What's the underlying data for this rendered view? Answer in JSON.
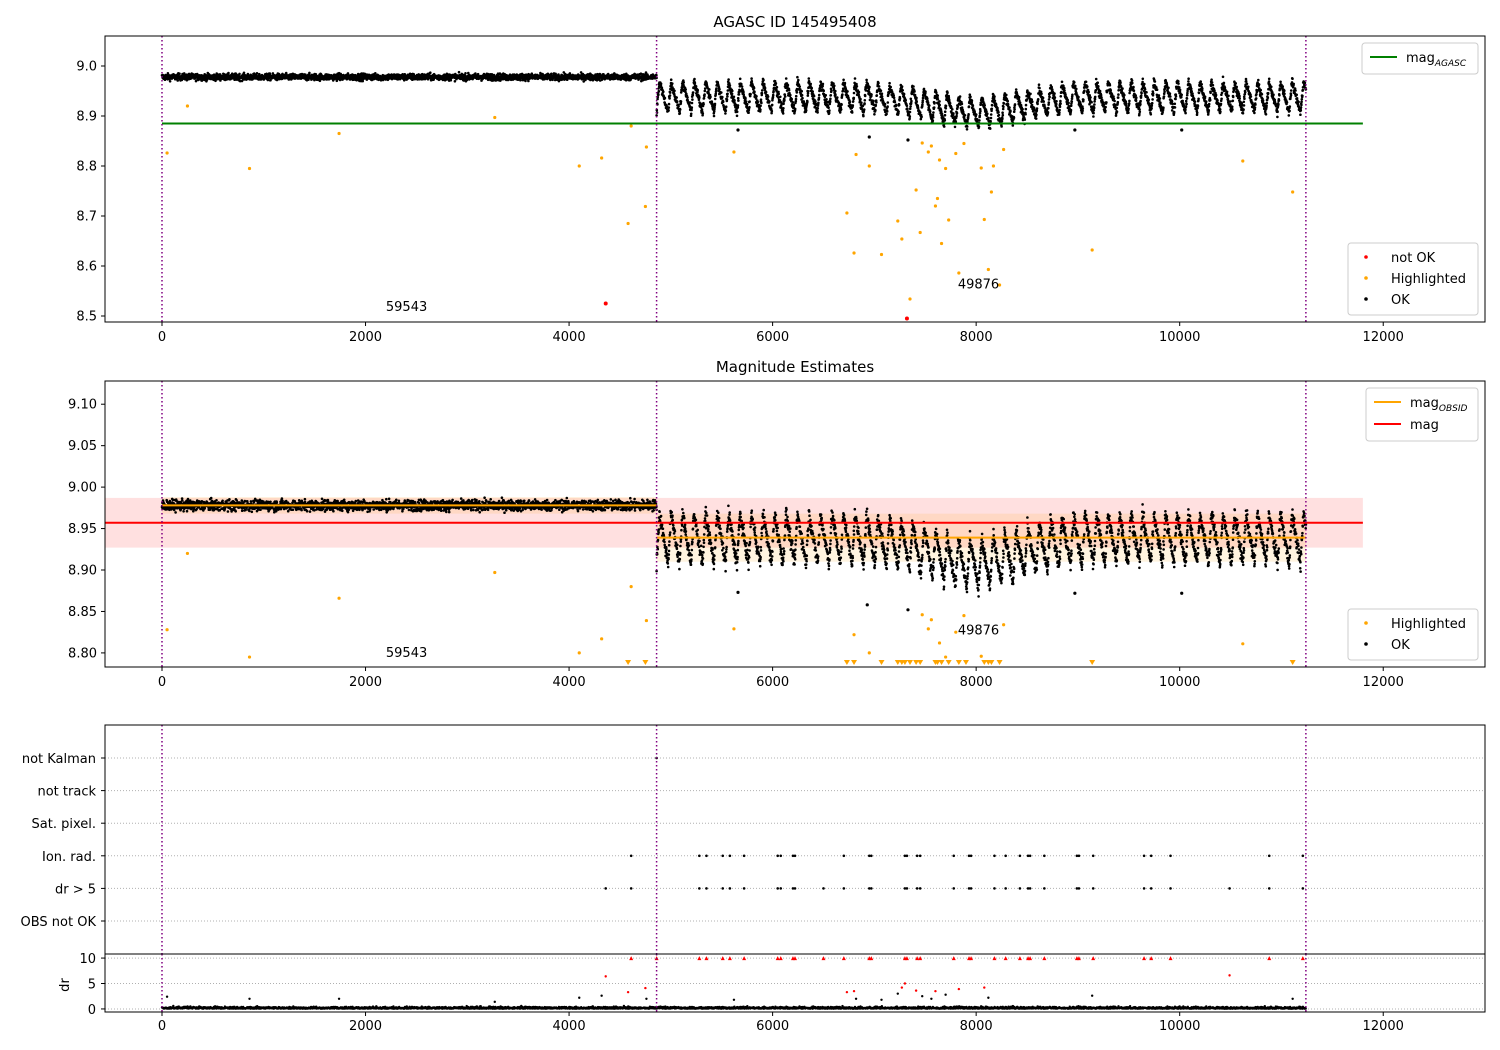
{
  "chart_data": [
    {
      "type": "scatter",
      "title": "AGASC ID 145495408",
      "xlim": [
        -560,
        13000
      ],
      "ylim": [
        8.488,
        9.06
      ],
      "x_ticks": [
        "0",
        "2000",
        "4000",
        "6000",
        "8000",
        "10000",
        "12000"
      ],
      "y_ticks": [
        "8.5",
        "8.6",
        "8.7",
        "8.8",
        "8.9",
        "9.0"
      ],
      "obs_boundaries": [
        0,
        4860,
        11240
      ],
      "obs_labels": [
        {
          "text": "59543",
          "x": 2200,
          "y": 8.51
        },
        {
          "text": "49876",
          "x": 7820,
          "y": 8.555
        }
      ],
      "reference_lines": [
        {
          "name": "mag",
          "sub": "AGASC",
          "value": 8.885,
          "color": "#008000",
          "x_range": [
            0,
            11800
          ]
        }
      ],
      "legend_lines": [
        {
          "main": "mag",
          "sub": "AGASC",
          "color": "#008000"
        }
      ],
      "legend_points": [
        {
          "label": "not OK",
          "color": "#ff0000"
        },
        {
          "label": "Highlighted",
          "color": "#ffa500"
        },
        {
          "label": "OK",
          "color": "#000000"
        }
      ],
      "series": [
        {
          "name": "OK",
          "color": "#000000",
          "segments": [
            {
              "x_range": [
                0,
                4860
              ],
              "base": 8.978,
              "variable": false
            },
            {
              "x_range": [
                4860,
                11240
              ],
              "base": 8.935,
              "variable": true
            }
          ],
          "points": [
            [
              5660,
              8.872
            ],
            [
              6950,
              8.858
            ],
            [
              7330,
              8.852
            ],
            [
              8970,
              8.872
            ],
            [
              10020,
              8.872
            ]
          ]
        },
        {
          "name": "Highlighted",
          "color": "#ffa500",
          "points": [
            [
              50,
              8.826
            ],
            [
              250,
              8.92
            ],
            [
              860,
              8.795
            ],
            [
              1740,
              8.865
            ],
            [
              3270,
              8.897
            ],
            [
              4100,
              8.8
            ],
            [
              4320,
              8.816
            ],
            [
              4580,
              8.685
            ],
            [
              4610,
              8.88
            ],
            [
              4750,
              8.719
            ],
            [
              4760,
              8.838
            ],
            [
              5620,
              8.828
            ],
            [
              6730,
              8.706
            ],
            [
              6800,
              8.626
            ],
            [
              6820,
              8.823
            ],
            [
              6950,
              8.8
            ],
            [
              7070,
              8.623
            ],
            [
              7230,
              8.69
            ],
            [
              7270,
              8.654
            ],
            [
              7350,
              8.534
            ],
            [
              7410,
              8.752
            ],
            [
              7450,
              8.667
            ],
            [
              7470,
              8.846
            ],
            [
              7530,
              8.828
            ],
            [
              7560,
              8.84
            ],
            [
              7600,
              8.72
            ],
            [
              7620,
              8.735
            ],
            [
              7640,
              8.812
            ],
            [
              7660,
              8.645
            ],
            [
              7700,
              8.795
            ],
            [
              7730,
              8.692
            ],
            [
              7800,
              8.825
            ],
            [
              7830,
              8.586
            ],
            [
              7880,
              8.845
            ],
            [
              8050,
              8.796
            ],
            [
              8080,
              8.693
            ],
            [
              8120,
              8.593
            ],
            [
              8150,
              8.748
            ],
            [
              8170,
              8.8
            ],
            [
              8230,
              8.562
            ],
            [
              8270,
              8.833
            ],
            [
              9140,
              8.632
            ],
            [
              10620,
              8.81
            ],
            [
              11110,
              8.748
            ]
          ]
        },
        {
          "name": "not OK",
          "color": "#ff0000",
          "points": [
            [
              4360,
              8.525
            ],
            [
              7320,
              8.495
            ]
          ]
        }
      ]
    },
    {
      "type": "scatter",
      "title": "Magnitude Estimates",
      "xlim": [
        -560,
        13000
      ],
      "ylim": [
        8.783,
        9.128
      ],
      "x_ticks": [
        "0",
        "2000",
        "4000",
        "6000",
        "8000",
        "10000",
        "12000"
      ],
      "y_ticks": [
        "8.80",
        "8.85",
        "8.90",
        "8.95",
        "9.00",
        "9.05",
        "9.10"
      ],
      "obs_boundaries": [
        0,
        4860,
        11240
      ],
      "obs_labels": [
        {
          "text": "59543",
          "x": 2200,
          "y": 8.795
        },
        {
          "text": "49876",
          "x": 7820,
          "y": 8.822
        }
      ],
      "bands": [
        {
          "color": "#ff0000",
          "opacity": 0.12,
          "y_range": [
            8.927,
            8.987
          ],
          "x_range": [
            -560,
            11800
          ]
        },
        {
          "color": "#ffa500",
          "opacity": 0.12,
          "y_range": [
            8.968,
            8.988
          ],
          "x_range": [
            0,
            4860
          ]
        },
        {
          "color": "#ffa500",
          "opacity": 0.12,
          "y_range": [
            8.91,
            8.968
          ],
          "x_range": [
            4860,
            11240
          ]
        }
      ],
      "reference_lines": [
        {
          "name": "mag",
          "value": 8.957,
          "color": "#ff0000",
          "x_range": [
            -560,
            11800
          ]
        },
        {
          "name": "mag",
          "sub": "OBSID",
          "value": 8.978,
          "color": "#ffa500",
          "x_range": [
            0,
            4860
          ]
        },
        {
          "name": "mag",
          "sub": "OBSID",
          "value": 8.939,
          "color": "#ffa500",
          "x_range": [
            4860,
            11240
          ]
        }
      ],
      "legend_lines": [
        {
          "main": "mag",
          "sub": "OBSID",
          "color": "#ffa500"
        },
        {
          "main": "mag",
          "sub": "",
          "color": "#ff0000"
        }
      ],
      "legend_points": [
        {
          "label": "Highlighted",
          "color": "#ffa500"
        },
        {
          "label": "OK",
          "color": "#000000"
        }
      ],
      "series": [
        {
          "name": "OK",
          "color": "#000000",
          "segments": [
            {
              "x_range": [
                0,
                4860
              ],
              "base": 8.978,
              "variable": false
            },
            {
              "x_range": [
                4860,
                11240
              ],
              "base": 8.935,
              "variable": true
            }
          ],
          "points": [
            [
              5660,
              8.873
            ],
            [
              6930,
              8.858
            ],
            [
              7330,
              8.852
            ],
            [
              8970,
              8.872
            ],
            [
              10020,
              8.872
            ]
          ]
        },
        {
          "name": "Highlighted",
          "color": "#ffa500",
          "points": [
            [
              50,
              8.828
            ],
            [
              250,
              8.92
            ],
            [
              860,
              8.795
            ],
            [
              1740,
              8.866
            ],
            [
              3270,
              8.897
            ],
            [
              4100,
              8.8
            ],
            [
              4320,
              8.817
            ],
            [
              4610,
              8.88
            ],
            [
              4760,
              8.839
            ],
            [
              5620,
              8.829
            ],
            [
              6800,
              8.822
            ],
            [
              6950,
              8.8
            ],
            [
              7470,
              8.846
            ],
            [
              7530,
              8.829
            ],
            [
              7560,
              8.84
            ],
            [
              7640,
              8.812
            ],
            [
              7700,
              8.795
            ],
            [
              7800,
              8.825
            ],
            [
              7880,
              8.845
            ],
            [
              8050,
              8.796
            ],
            [
              8270,
              8.834
            ],
            [
              10620,
              8.811
            ]
          ],
          "clipped_points": [
            4580,
            4750,
            6730,
            6800,
            7070,
            7230,
            7270,
            7300,
            7350,
            7410,
            7450,
            7600,
            7620,
            7660,
            7730,
            7830,
            7900,
            8080,
            8120,
            8150,
            8230,
            9140,
            11110
          ]
        }
      ]
    },
    {
      "type": "scatter",
      "title": "",
      "xlim": [
        -560,
        13000
      ],
      "x_ticks": [
        "0",
        "2000",
        "4000",
        "6000",
        "8000",
        "10000",
        "12000"
      ],
      "obs_boundaries": [
        0,
        4860,
        11240
      ],
      "flag_rows": [
        "not Kalman",
        "not track",
        "Sat. pixel.",
        "Ion. rad.",
        "dr > 5",
        "OBS not OK"
      ],
      "flags": {
        "not Kalman": [
          4860
        ],
        "not track": [],
        "Sat. pixel.": [],
        "Ion. rad.": [
          4610,
          5280,
          5350,
          5510,
          5580,
          5720,
          6050,
          6080,
          6200,
          6220,
          6700,
          6950,
          6970,
          7300,
          7320,
          7420,
          7450,
          7780,
          7930,
          7950,
          8180,
          8290,
          8430,
          8510,
          8530,
          8670,
          8990,
          9010,
          9150,
          9650,
          9720,
          9910,
          10880,
          11210
        ],
        "dr > 5": [
          4360,
          4610,
          5280,
          5350,
          5510,
          5580,
          5720,
          6050,
          6080,
          6200,
          6220,
          6500,
          6700,
          6950,
          6970,
          7300,
          7320,
          7420,
          7450,
          7780,
          7930,
          7950,
          8180,
          8290,
          8430,
          8510,
          8530,
          8670,
          8990,
          9010,
          9150,
          9650,
          9720,
          9910,
          10490,
          10880,
          11210
        ],
        "OBS not OK": []
      },
      "dr_panel": {
        "ylabel": "dr",
        "ylim": [
          -0.6,
          10.8
        ],
        "y_ticks": [
          "0",
          "5",
          "10"
        ],
        "baseline_x_range": [
          0,
          11240
        ],
        "scatter_black": [
          [
            50,
            2.4
          ],
          [
            860,
            2.0
          ],
          [
            1740,
            2.0
          ],
          [
            3270,
            1.4
          ],
          [
            4100,
            2.2
          ],
          [
            4320,
            2.6
          ],
          [
            4760,
            2.0
          ],
          [
            5620,
            1.8
          ],
          [
            6820,
            2.0
          ],
          [
            7070,
            1.8
          ],
          [
            7230,
            3.0
          ],
          [
            7470,
            2.5
          ],
          [
            7560,
            2.0
          ],
          [
            7700,
            2.8
          ],
          [
            8120,
            2.2
          ],
          [
            9140,
            2.6
          ],
          [
            11110,
            2.0
          ]
        ],
        "scatter_red_mid": [
          [
            4360,
            6.4
          ],
          [
            4580,
            3.3
          ],
          [
            4750,
            4.1
          ],
          [
            6730,
            3.3
          ],
          [
            6800,
            3.5
          ],
          [
            7270,
            4.2
          ],
          [
            7300,
            5.0
          ],
          [
            7410,
            3.6
          ],
          [
            7600,
            3.5
          ],
          [
            7830,
            3.9
          ],
          [
            8080,
            4.2
          ],
          [
            10490,
            6.6
          ]
        ],
        "capped_red": [
          4610,
          4860,
          5280,
          5350,
          5510,
          5580,
          5720,
          6050,
          6080,
          6200,
          6220,
          6500,
          6700,
          6950,
          6970,
          7300,
          7320,
          7420,
          7450,
          7780,
          7930,
          7950,
          8180,
          8290,
          8430,
          8510,
          8530,
          8670,
          8990,
          9010,
          9150,
          9650,
          9720,
          9910,
          10880,
          11210
        ]
      }
    }
  ]
}
